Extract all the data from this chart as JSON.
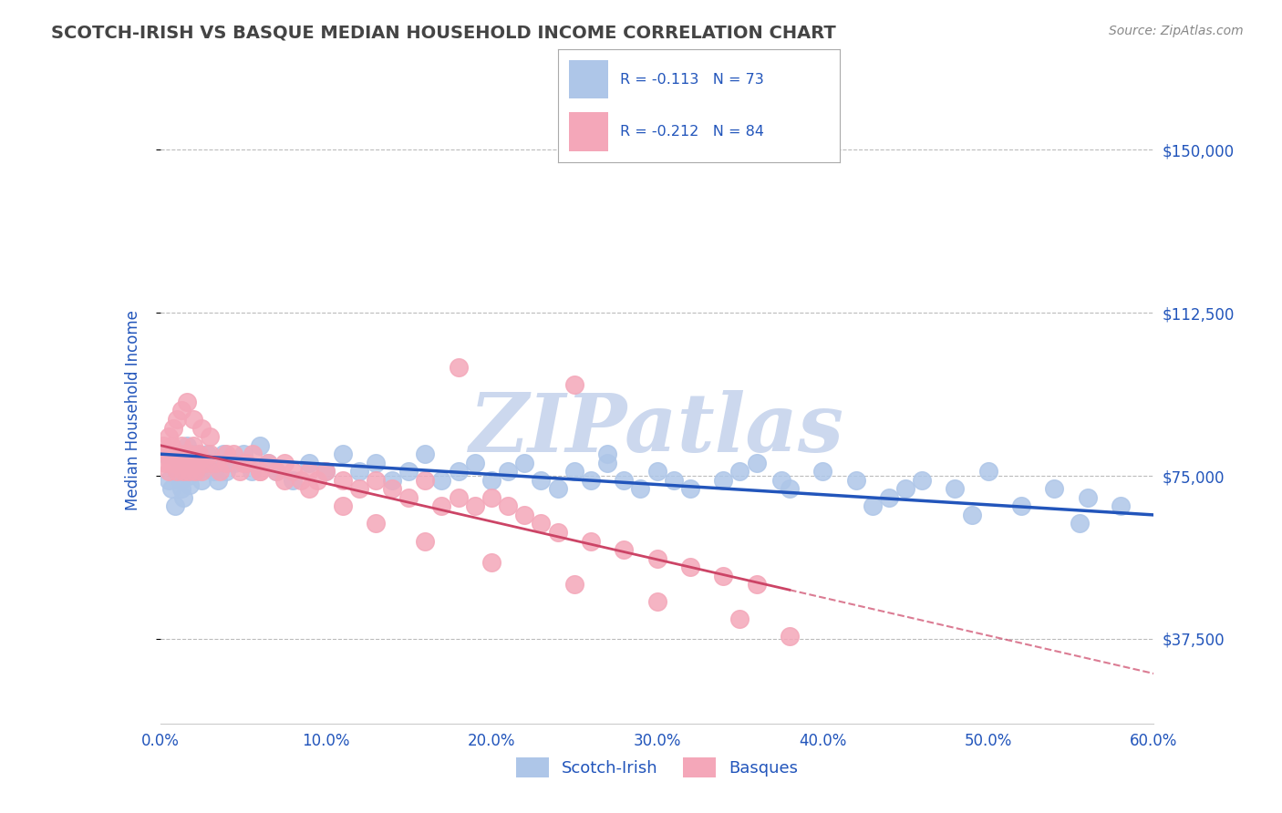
{
  "title": "SCOTCH-IRISH VS BASQUE MEDIAN HOUSEHOLD INCOME CORRELATION CHART",
  "source_text": "Source: ZipAtlas.com",
  "ylabel": "Median Household Income",
  "xlim": [
    0.0,
    0.6
  ],
  "ylim": [
    18000,
    162000
  ],
  "yticks": [
    37500,
    75000,
    112500,
    150000
  ],
  "ytick_labels": [
    "$37,500",
    "$75,000",
    "$112,500",
    "$150,000"
  ],
  "xticks": [
    0.0,
    0.1,
    0.2,
    0.3,
    0.4,
    0.5,
    0.6
  ],
  "xtick_labels": [
    "0.0%",
    "10.0%",
    "20.0%",
    "30.0%",
    "40.0%",
    "50.0%",
    "60.0%"
  ],
  "scotch_irish_R": -0.113,
  "scotch_irish_N": 73,
  "basque_R": -0.212,
  "basque_N": 84,
  "scotch_irish_color": "#aec6e8",
  "basque_color": "#f4a7b9",
  "scotch_irish_line_color": "#2255bb",
  "basque_line_color": "#cc4466",
  "legend_text_color": "#2255bb",
  "title_color": "#444444",
  "axis_label_color": "#2255bb",
  "tick_color": "#2255bb",
  "watermark": "ZIPatlas",
  "watermark_color": "#ccd8ee",
  "background_color": "#ffffff",
  "grid_color": "#bbbbbb",
  "scotch_irish_x": [
    0.003,
    0.005,
    0.007,
    0.009,
    0.01,
    0.011,
    0.012,
    0.013,
    0.014,
    0.015,
    0.016,
    0.017,
    0.018,
    0.02,
    0.022,
    0.025,
    0.028,
    0.03,
    0.032,
    0.035,
    0.038,
    0.04,
    0.045,
    0.05,
    0.055,
    0.06,
    0.065,
    0.07,
    0.08,
    0.09,
    0.1,
    0.11,
    0.12,
    0.13,
    0.14,
    0.15,
    0.16,
    0.17,
    0.18,
    0.19,
    0.2,
    0.21,
    0.22,
    0.23,
    0.24,
    0.25,
    0.26,
    0.27,
    0.28,
    0.29,
    0.3,
    0.31,
    0.32,
    0.34,
    0.36,
    0.38,
    0.4,
    0.42,
    0.44,
    0.46,
    0.48,
    0.5,
    0.52,
    0.54,
    0.56,
    0.58,
    0.35,
    0.27,
    0.45,
    0.375,
    0.43,
    0.49,
    0.555
  ],
  "scotch_irish_y": [
    80000,
    74000,
    72000,
    68000,
    79000,
    76000,
    74000,
    72000,
    70000,
    78000,
    82000,
    75000,
    73000,
    80000,
    76000,
    74000,
    80000,
    78000,
    76000,
    74000,
    80000,
    76000,
    78000,
    80000,
    76000,
    82000,
    78000,
    76000,
    74000,
    78000,
    76000,
    80000,
    76000,
    78000,
    74000,
    76000,
    80000,
    74000,
    76000,
    78000,
    74000,
    76000,
    78000,
    74000,
    72000,
    76000,
    74000,
    78000,
    74000,
    72000,
    76000,
    74000,
    72000,
    74000,
    78000,
    72000,
    76000,
    74000,
    70000,
    74000,
    72000,
    76000,
    68000,
    72000,
    70000,
    68000,
    76000,
    80000,
    72000,
    74000,
    68000,
    66000,
    64000
  ],
  "basque_x": [
    0.002,
    0.003,
    0.004,
    0.005,
    0.006,
    0.007,
    0.008,
    0.009,
    0.01,
    0.011,
    0.012,
    0.013,
    0.014,
    0.015,
    0.016,
    0.017,
    0.018,
    0.019,
    0.02,
    0.021,
    0.022,
    0.023,
    0.025,
    0.027,
    0.03,
    0.033,
    0.036,
    0.04,
    0.044,
    0.048,
    0.052,
    0.056,
    0.06,
    0.065,
    0.07,
    0.075,
    0.08,
    0.085,
    0.09,
    0.095,
    0.1,
    0.11,
    0.12,
    0.13,
    0.14,
    0.15,
    0.16,
    0.17,
    0.18,
    0.19,
    0.2,
    0.21,
    0.22,
    0.23,
    0.24,
    0.26,
    0.28,
    0.3,
    0.32,
    0.34,
    0.36,
    0.005,
    0.008,
    0.01,
    0.013,
    0.016,
    0.02,
    0.025,
    0.03,
    0.04,
    0.05,
    0.06,
    0.075,
    0.09,
    0.11,
    0.13,
    0.16,
    0.2,
    0.25,
    0.3,
    0.35,
    0.38,
    0.25,
    0.18
  ],
  "basque_y": [
    82000,
    78000,
    80000,
    76000,
    78000,
    82000,
    80000,
    78000,
    76000,
    80000,
    78000,
    82000,
    76000,
    80000,
    78000,
    76000,
    80000,
    78000,
    82000,
    76000,
    78000,
    80000,
    76000,
    78000,
    80000,
    78000,
    76000,
    78000,
    80000,
    76000,
    78000,
    80000,
    76000,
    78000,
    76000,
    78000,
    76000,
    74000,
    76000,
    74000,
    76000,
    74000,
    72000,
    74000,
    72000,
    70000,
    74000,
    68000,
    70000,
    68000,
    70000,
    68000,
    66000,
    64000,
    62000,
    60000,
    58000,
    56000,
    54000,
    52000,
    50000,
    84000,
    86000,
    88000,
    90000,
    92000,
    88000,
    86000,
    84000,
    80000,
    78000,
    76000,
    74000,
    72000,
    68000,
    64000,
    60000,
    55000,
    50000,
    46000,
    42000,
    38000,
    96000,
    100000
  ],
  "si_line_x0": 0.0,
  "si_line_y0": 80000,
  "si_line_x1": 0.6,
  "si_line_y1": 66000,
  "bq_line_x0": 0.0,
  "bq_line_y0": 82000,
  "bq_line_x1": 0.4,
  "bq_line_y1": 47000
}
